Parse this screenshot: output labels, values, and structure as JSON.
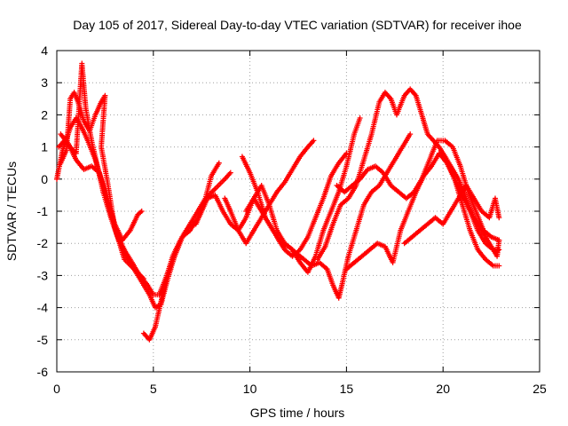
{
  "chart_data": {
    "type": "scatter",
    "title": "Day 105 of 2017, Sidereal Day-to-day VTEC variation (SDTVAR) for receiver ihoe",
    "xlabel": "GPS time / hours",
    "ylabel": "SDTVAR / TECUs",
    "xlim": [
      0,
      25
    ],
    "ylim": [
      -6,
      4
    ],
    "xticks": [
      "0",
      "5",
      "10",
      "15",
      "20",
      "25"
    ],
    "yticks": [
      "-6",
      "-5",
      "-4",
      "-3",
      "-2",
      "-1",
      "0",
      "1",
      "2",
      "3",
      "4"
    ],
    "grid": true,
    "marker": "plus",
    "color": "#ff0000",
    "series": [
      {
        "points": [
          [
            0,
            0.0
          ],
          [
            0.3,
            0.9
          ],
          [
            0.7,
            1.6
          ],
          [
            1.0,
            1.9
          ],
          [
            1.3,
            1.6
          ],
          [
            1.6,
            1.2
          ],
          [
            2.0,
            0.6
          ],
          [
            2.3,
            0.0
          ],
          [
            2.7,
            -0.9
          ],
          [
            3.1,
            -1.7
          ],
          [
            3.5,
            -2.2
          ],
          [
            3.9,
            -2.6
          ],
          [
            4.3,
            -3.0
          ],
          [
            4.7,
            -3.3
          ],
          [
            5.0,
            -3.6
          ],
          [
            5.3,
            -3.6
          ],
          [
            5.7,
            -3.0
          ],
          [
            6.1,
            -2.4
          ],
          [
            6.5,
            -1.8
          ],
          [
            6.9,
            -1.6
          ],
          [
            7.3,
            -1.2
          ],
          [
            7.7,
            -0.6
          ],
          [
            8.0,
            0.1
          ],
          [
            8.4,
            0.5
          ]
        ]
      },
      {
        "points": [
          [
            0.1,
            1.0
          ],
          [
            0.4,
            1.2
          ],
          [
            0.7,
            1.0
          ],
          [
            1.0,
            0.8
          ],
          [
            1.3,
            3.6
          ],
          [
            1.5,
            2.2
          ],
          [
            1.8,
            1.2
          ],
          [
            2.1,
            0.4
          ],
          [
            2.4,
            -0.4
          ],
          [
            2.8,
            -1.2
          ],
          [
            3.2,
            -1.9
          ],
          [
            3.6,
            -2.4
          ],
          [
            4.0,
            -2.8
          ],
          [
            4.4,
            -3.2
          ],
          [
            4.8,
            -3.6
          ],
          [
            5.1,
            -4.0
          ],
          [
            5.4,
            -3.9
          ],
          [
            5.7,
            -3.2
          ],
          [
            6.1,
            -2.4
          ],
          [
            6.5,
            -1.8
          ],
          [
            6.9,
            -1.4
          ],
          [
            7.3,
            -1.0
          ],
          [
            7.7,
            -0.6
          ],
          [
            8.2,
            -0.3
          ],
          [
            8.7,
            0.0
          ],
          [
            9.0,
            0.2
          ]
        ]
      },
      {
        "points": [
          [
            0.2,
            0.5
          ],
          [
            0.5,
            0.9
          ],
          [
            0.7,
            2.5
          ],
          [
            0.9,
            2.7
          ],
          [
            1.1,
            2.4
          ],
          [
            1.4,
            1.8
          ],
          [
            1.7,
            1.5
          ],
          [
            2.0,
            2.0
          ],
          [
            2.3,
            2.4
          ],
          [
            2.5,
            2.6
          ],
          [
            2.3,
            1.0
          ],
          [
            2.6,
            0.0
          ],
          [
            3.0,
            -1.5
          ],
          [
            3.5,
            -2.5
          ],
          [
            4.0,
            -2.8
          ],
          [
            4.5,
            -3.1
          ]
        ]
      },
      {
        "points": [
          [
            0.2,
            1.4
          ],
          [
            0.6,
            1.1
          ],
          [
            1.0,
            0.6
          ],
          [
            1.4,
            0.3
          ],
          [
            1.8,
            0.4
          ],
          [
            2.2,
            0.2
          ],
          [
            2.6,
            -0.6
          ],
          [
            3.0,
            -1.4
          ],
          [
            3.4,
            -1.9
          ],
          [
            3.8,
            -1.6
          ],
          [
            4.2,
            -1.1
          ],
          [
            4.4,
            -1.0
          ]
        ]
      },
      {
        "points": [
          [
            4.5,
            -4.8
          ],
          [
            4.8,
            -5.0
          ],
          [
            5.1,
            -4.6
          ],
          [
            5.4,
            -3.8
          ],
          [
            5.7,
            -3.0
          ],
          [
            6.0,
            -2.4
          ],
          [
            6.4,
            -1.9
          ],
          [
            6.8,
            -1.5
          ],
          [
            7.2,
            -1.4
          ],
          [
            7.5,
            -1.0
          ],
          [
            7.8,
            -0.6
          ],
          [
            8.2,
            -0.5
          ],
          [
            8.6,
            -1.0
          ],
          [
            9.0,
            -1.4
          ],
          [
            9.4,
            -1.6
          ],
          [
            9.8,
            -1.2
          ],
          [
            10.2,
            -0.6
          ],
          [
            10.6,
            -0.2
          ],
          [
            11.0,
            -0.8
          ],
          [
            11.4,
            -1.6
          ],
          [
            11.8,
            -2.0
          ],
          [
            12.2,
            -2.2
          ],
          [
            12.6,
            -2.6
          ],
          [
            13.0,
            -2.9
          ],
          [
            13.4,
            -2.4
          ],
          [
            13.8,
            -1.6
          ],
          [
            14.2,
            -1.0
          ],
          [
            14.6,
            -0.4
          ],
          [
            15.0,
            0.4
          ],
          [
            15.4,
            1.4
          ],
          [
            15.7,
            1.9
          ]
        ]
      },
      {
        "points": [
          [
            8.7,
            -0.6
          ],
          [
            9.0,
            -1.0
          ],
          [
            9.4,
            -1.6
          ],
          [
            9.8,
            -2.0
          ],
          [
            10.2,
            -1.6
          ],
          [
            10.6,
            -1.2
          ],
          [
            11.0,
            -0.8
          ],
          [
            11.4,
            -0.4
          ],
          [
            11.8,
            -0.1
          ],
          [
            12.2,
            0.3
          ],
          [
            12.6,
            0.7
          ],
          [
            13.0,
            1.0
          ],
          [
            13.3,
            1.2
          ]
        ]
      },
      {
        "points": [
          [
            9.6,
            0.7
          ],
          [
            10.0,
            0.2
          ],
          [
            10.4,
            -0.4
          ],
          [
            10.8,
            -1.2
          ],
          [
            11.2,
            -1.6
          ],
          [
            11.6,
            -2.0
          ],
          [
            12.0,
            -2.1
          ],
          [
            12.4,
            -2.3
          ],
          [
            12.8,
            -2.5
          ],
          [
            13.2,
            -2.7
          ],
          [
            13.6,
            -2.6
          ],
          [
            14.0,
            -2.8
          ],
          [
            14.3,
            -3.3
          ],
          [
            14.6,
            -3.7
          ],
          [
            14.8,
            -3.2
          ],
          [
            15.1,
            -2.4
          ],
          [
            15.5,
            -1.6
          ],
          [
            15.9,
            -0.8
          ],
          [
            16.3,
            -0.4
          ],
          [
            16.7,
            -0.2
          ],
          [
            17.1,
            0.2
          ],
          [
            17.5,
            0.6
          ],
          [
            17.9,
            1.0
          ],
          [
            18.3,
            1.4
          ]
        ]
      },
      {
        "points": [
          [
            9.8,
            -1.0
          ],
          [
            10.2,
            -0.6
          ],
          [
            10.6,
            -1.0
          ],
          [
            11.0,
            -1.4
          ],
          [
            11.4,
            -1.8
          ],
          [
            11.8,
            -2.2
          ],
          [
            12.2,
            -2.4
          ],
          [
            12.6,
            -2.2
          ],
          [
            13.0,
            -1.8
          ],
          [
            13.4,
            -1.2
          ],
          [
            13.8,
            -0.6
          ],
          [
            14.2,
            0.1
          ],
          [
            14.6,
            0.5
          ],
          [
            15.0,
            0.8
          ]
        ]
      },
      {
        "points": [
          [
            13.5,
            -2.5
          ],
          [
            13.9,
            -2.1
          ],
          [
            14.3,
            -1.4
          ],
          [
            14.7,
            -0.8
          ],
          [
            15.1,
            -0.6
          ],
          [
            15.5,
            -0.2
          ],
          [
            15.9,
            0.6
          ],
          [
            16.3,
            1.4
          ],
          [
            16.7,
            2.4
          ],
          [
            17.0,
            2.7
          ],
          [
            17.3,
            2.5
          ],
          [
            17.6,
            2.0
          ],
          [
            18.0,
            2.6
          ],
          [
            18.3,
            2.8
          ],
          [
            18.6,
            2.6
          ],
          [
            18.9,
            2.0
          ],
          [
            19.2,
            1.4
          ],
          [
            19.5,
            1.2
          ],
          [
            19.8,
            1.0
          ],
          [
            20.2,
            0.6
          ],
          [
            20.6,
            0.0
          ],
          [
            21.0,
            -0.8
          ],
          [
            21.4,
            -1.6
          ],
          [
            21.8,
            -2.2
          ],
          [
            22.2,
            -2.5
          ],
          [
            22.6,
            -2.7
          ],
          [
            22.9,
            -2.7
          ]
        ]
      },
      {
        "points": [
          [
            14.5,
            -0.2
          ],
          [
            14.9,
            -0.4
          ],
          [
            15.3,
            -0.2
          ],
          [
            15.7,
            0.0
          ],
          [
            16.1,
            0.3
          ],
          [
            16.5,
            0.4
          ],
          [
            16.9,
            0.2
          ],
          [
            17.3,
            -0.2
          ],
          [
            17.7,
            -0.4
          ],
          [
            18.1,
            -0.6
          ],
          [
            18.5,
            -0.4
          ],
          [
            18.9,
            0.0
          ],
          [
            19.3,
            0.6
          ],
          [
            19.7,
            1.2
          ],
          [
            20.1,
            1.2
          ],
          [
            20.5,
            1.0
          ],
          [
            20.9,
            0.4
          ],
          [
            21.3,
            -0.4
          ],
          [
            21.7,
            -1.0
          ],
          [
            22.1,
            -1.6
          ],
          [
            22.5,
            -1.8
          ],
          [
            22.9,
            -1.9
          ]
        ]
      },
      {
        "points": [
          [
            15.0,
            -2.8
          ],
          [
            15.4,
            -2.6
          ],
          [
            15.8,
            -2.4
          ],
          [
            16.2,
            -2.2
          ],
          [
            16.6,
            -2.0
          ],
          [
            17.0,
            -2.1
          ],
          [
            17.4,
            -2.6
          ],
          [
            17.8,
            -1.6
          ],
          [
            18.2,
            -1.0
          ],
          [
            18.6,
            -0.4
          ],
          [
            19.0,
            0.1
          ],
          [
            19.4,
            0.4
          ],
          [
            19.8,
            0.8
          ],
          [
            20.2,
            0.5
          ],
          [
            20.6,
            0.0
          ],
          [
            21.0,
            -0.5
          ],
          [
            21.4,
            -1.0
          ],
          [
            21.8,
            -1.6
          ],
          [
            22.2,
            -2.0
          ],
          [
            22.6,
            -2.2
          ],
          [
            22.9,
            -2.2
          ]
        ]
      },
      {
        "points": [
          [
            18.0,
            -2.0
          ],
          [
            18.4,
            -1.8
          ],
          [
            18.8,
            -1.6
          ],
          [
            19.2,
            -1.4
          ],
          [
            19.6,
            -1.2
          ],
          [
            20.0,
            -1.4
          ],
          [
            20.4,
            -1.0
          ],
          [
            20.8,
            -0.6
          ],
          [
            21.2,
            -0.2
          ],
          [
            21.6,
            -0.6
          ],
          [
            22.0,
            -1.0
          ],
          [
            22.4,
            -1.2
          ],
          [
            22.7,
            -0.6
          ],
          [
            22.9,
            -1.2
          ]
        ]
      },
      {
        "points": [
          [
            20.0,
            0.8
          ],
          [
            20.4,
            0.4
          ],
          [
            20.8,
            0.0
          ],
          [
            21.2,
            -0.6
          ],
          [
            21.6,
            -1.2
          ],
          [
            22.0,
            -1.6
          ],
          [
            22.4,
            -2.0
          ],
          [
            22.8,
            -2.4
          ],
          [
            22.9,
            -1.9
          ]
        ]
      }
    ]
  }
}
